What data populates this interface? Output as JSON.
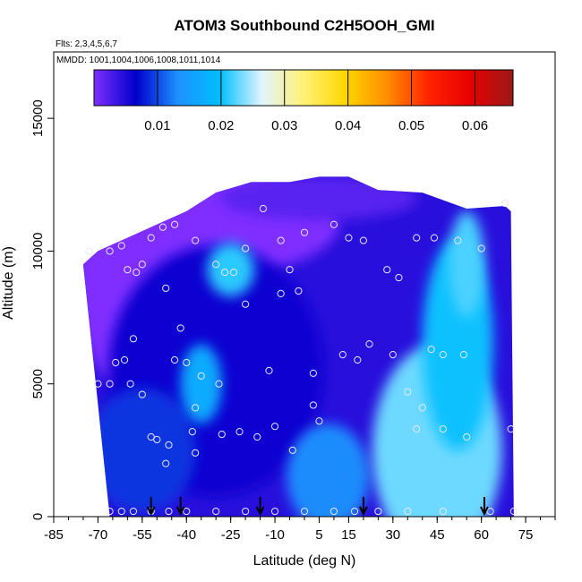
{
  "chart_data": {
    "type": "heatmap",
    "title": "ATOM3 Southbound C2H5OOH_GMI",
    "flights_label": "Flts: 2,3,4,5,6,7",
    "dates_label": "MMDD: 1001,1004,1006,1008,1011,1014",
    "xlabel": "Latitude (deg N)",
    "ylabel": "Altitude (m)",
    "xlim": [
      -85,
      85
    ],
    "ylim": [
      0,
      17500
    ],
    "x_ticks": [
      -85,
      -70,
      -55,
      -40,
      -25,
      -10,
      5,
      15,
      30,
      45,
      60,
      75
    ],
    "x_tick_labels": [
      "-85",
      "-70",
      "-55",
      "-40",
      "-25",
      "-10",
      "5",
      "15",
      "30",
      "45",
      "60",
      "75"
    ],
    "y_ticks": [
      0,
      5000,
      10000,
      15000
    ],
    "y_tick_labels": [
      "0",
      "5000",
      "10000",
      "15000"
    ],
    "colorbar": {
      "range": [
        0,
        0.066
      ],
      "ticks": [
        0.01,
        0.02,
        0.03,
        0.04,
        0.05,
        0.06
      ],
      "tick_labels": [
        "0.01",
        "0.02",
        "0.03",
        "0.04",
        "0.05",
        "0.06"
      ],
      "colors": [
        "#7f2fff",
        "#0000cc",
        "#1e90ff",
        "#00bfff",
        "#e0f4ff",
        "#fff176",
        "#ffd700",
        "#ff8c00",
        "#ff2200",
        "#e60000",
        "#9b1a1a"
      ]
    },
    "envelope": [
      [
        -75,
        9500
      ],
      [
        -70,
        10000
      ],
      [
        -60,
        10500
      ],
      [
        -50,
        11000
      ],
      [
        -40,
        11500
      ],
      [
        -30,
        12200
      ],
      [
        -18,
        12600
      ],
      [
        -5,
        12600
      ],
      [
        5,
        12800
      ],
      [
        15,
        12800
      ],
      [
        25,
        12300
      ],
      [
        40,
        12200
      ],
      [
        55,
        11600
      ],
      [
        68,
        11700
      ],
      [
        70,
        11500
      ]
    ],
    "high_regions": [
      {
        "lat": -25,
        "alt": 9300,
        "rlat": 8,
        "ralt": 1000,
        "value": 0.021
      },
      {
        "lat": -35,
        "alt": 5000,
        "rlat": 7,
        "ralt": 1500,
        "value": 0.017
      },
      {
        "lat": 8,
        "alt": 1500,
        "rlat": 14,
        "ralt": 2000,
        "value": 0.013
      },
      {
        "lat": 45,
        "alt": 2500,
        "rlat": 22,
        "ralt": 4000,
        "value": 0.023
      },
      {
        "lat": 52,
        "alt": 6500,
        "rlat": 12,
        "ralt": 4000,
        "value": 0.02
      },
      {
        "lat": 55,
        "alt": 9500,
        "rlat": 6,
        "ralt": 2000,
        "value": 0.022
      }
    ],
    "flight_points": [
      [
        -73,
        10000
      ],
      [
        -66,
        10000
      ],
      [
        -62,
        10200
      ],
      [
        -60,
        9300
      ],
      [
        -57,
        9200
      ],
      [
        -55,
        9500
      ],
      [
        -52,
        10500
      ],
      [
        -48,
        10900
      ],
      [
        -44,
        11000
      ],
      [
        -37,
        10400
      ],
      [
        -30,
        9500
      ],
      [
        -27,
        9200
      ],
      [
        -24,
        9200
      ],
      [
        -20,
        10100
      ],
      [
        -14,
        11600
      ],
      [
        -8,
        10400
      ],
      [
        -5,
        9300
      ],
      [
        0,
        10700
      ],
      [
        10,
        11000
      ],
      [
        15,
        10500
      ],
      [
        20,
        10400
      ],
      [
        28,
        9300
      ],
      [
        32,
        9000
      ],
      [
        38,
        10500
      ],
      [
        44,
        10500
      ],
      [
        52,
        10400
      ],
      [
        60,
        10100
      ],
      [
        68,
        11800
      ],
      [
        -47,
        8600
      ],
      [
        -42,
        7100
      ],
      [
        -58,
        6700
      ],
      [
        -61,
        5900
      ],
      [
        -64,
        5800
      ],
      [
        -59,
        5000
      ],
      [
        -55,
        4600
      ],
      [
        -66,
        5000
      ],
      [
        -70,
        5000
      ],
      [
        -52,
        3000
      ],
      [
        -44,
        5900
      ],
      [
        -40,
        5800
      ],
      [
        -35,
        5300
      ],
      [
        -29,
        5000
      ],
      [
        -50,
        2900
      ],
      [
        -46,
        2700
      ],
      [
        -38,
        3200
      ],
      [
        -28,
        3100
      ],
      [
        -22,
        3200
      ],
      [
        -16,
        3000
      ],
      [
        -10,
        3400
      ],
      [
        -4,
        2500
      ],
      [
        3,
        5400
      ],
      [
        5,
        3600
      ],
      [
        13,
        6100
      ],
      [
        18,
        5900
      ],
      [
        22,
        6500
      ],
      [
        30,
        6100
      ],
      [
        35,
        4700
      ],
      [
        40,
        4100
      ],
      [
        43,
        6300
      ],
      [
        47,
        6100
      ],
      [
        54,
        6100
      ],
      [
        38,
        3300
      ],
      [
        47,
        3300
      ],
      [
        55,
        3000
      ],
      [
        70,
        3300
      ],
      [
        -47,
        2000
      ],
      [
        -37,
        2400
      ],
      [
        -12,
        5500
      ],
      [
        3,
        4200
      ],
      [
        -2,
        8500
      ],
      [
        -8,
        8400
      ],
      [
        -20,
        8000
      ],
      [
        -66,
        200
      ],
      [
        -62,
        200
      ],
      [
        -58,
        200
      ],
      [
        -52,
        200
      ],
      [
        -46,
        200
      ],
      [
        -40,
        200
      ],
      [
        -30,
        200
      ],
      [
        -20,
        200
      ],
      [
        -10,
        200
      ],
      [
        0,
        200
      ],
      [
        10,
        200
      ],
      [
        17,
        200
      ],
      [
        25,
        200
      ],
      [
        35,
        200
      ],
      [
        47,
        200
      ],
      [
        63,
        200
      ],
      [
        71,
        200
      ],
      [
        -37,
        4100
      ]
    ],
    "arrows": [
      -52,
      -42,
      -15,
      20,
      61
    ]
  }
}
